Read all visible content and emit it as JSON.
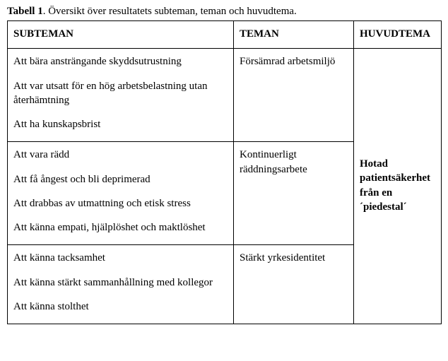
{
  "caption": {
    "lead": "Tabell 1",
    "rest": ". Översikt över resultatets subteman, teman och huvudtema."
  },
  "headers": {
    "subteman": "SUBTEMAN",
    "teman": "TEMAN",
    "huvudtema": "HUVUDTEMA"
  },
  "rows": [
    {
      "subteman": [
        "Att bära ansträngande skyddsutrustning",
        "Att var utsatt för en hög arbetsbelastning utan återhämtning",
        "Att ha kunskapsbrist"
      ],
      "teman": "Försämrad arbetsmiljö"
    },
    {
      "subteman": [
        "Att vara rädd",
        "Att få ångest och bli deprimerad",
        "Att drabbas av utmattning och etisk stress",
        "Att känna empati, hjälplöshet och maktlöshet"
      ],
      "teman": "Kontinuerligt räddningsarbete"
    },
    {
      "subteman": [
        "Att känna tacksamhet",
        "Att känna stärkt sammanhållning med kollegor",
        "Att känna stolthet"
      ],
      "teman": "Stärkt yrkesidentitet"
    }
  ],
  "huvudtema": "Hotad patientsäkerhet från en ´piedestal´"
}
